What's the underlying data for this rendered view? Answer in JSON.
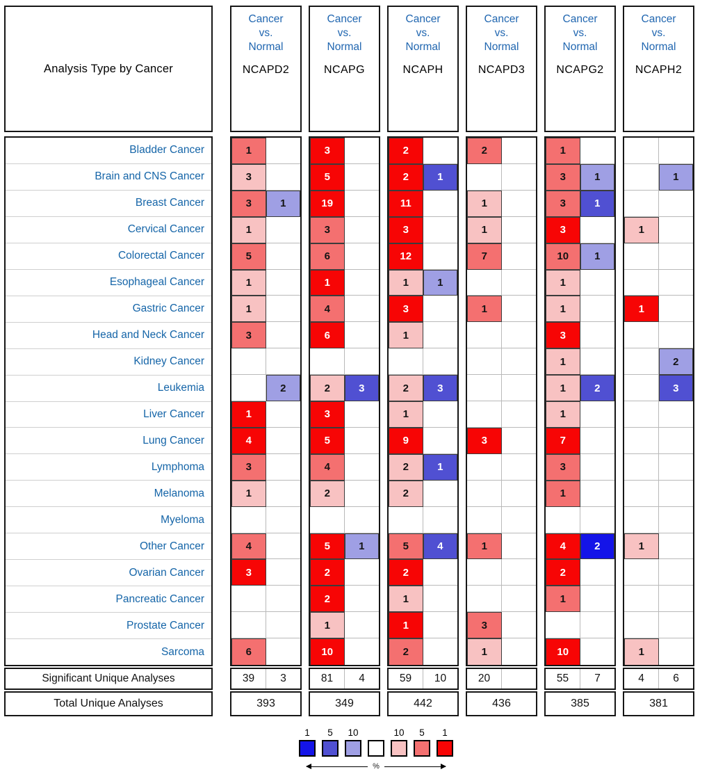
{
  "palette": {
    "r1": "#f70505",
    "r5": "#f47070",
    "r10": "#f8c2c2",
    "b10": "#9f9fe4",
    "b5": "#5050d2",
    "b1": "#1414e8",
    "white": "#ffffff"
  },
  "text_colors": {
    "r1": "#ffffff",
    "r5": "#141414",
    "r10": "#141414",
    "b10": "#141414",
    "b5": "#ffffff",
    "b1": "#ffffff"
  },
  "chart_data": {
    "type": "heatmap",
    "title": "Analysis Type by Cancer",
    "comparison_lines": [
      "Cancer",
      "vs.",
      "Normal"
    ],
    "genes": [
      "NCAPD2",
      "NCAPG",
      "NCAPH",
      "NCAPD3",
      "NCAPG2",
      "NCAPH2"
    ],
    "cancer_types": [
      "Bladder Cancer",
      "Brain and CNS Cancer",
      "Breast Cancer",
      "Cervical Cancer",
      "Colorectal Cancer",
      "Esophageal Cancer",
      "Gastric Cancer",
      "Head and Neck Cancer",
      "Kidney Cancer",
      "Leukemia",
      "Liver Cancer",
      "Lung Cancer",
      "Lymphoma",
      "Melanoma",
      "Myeloma",
      "Other Cancer",
      "Ovarian Cancer",
      "Pancreatic Cancer",
      "Prostate Cancer",
      "Sarcoma"
    ],
    "cells": {
      "NCAPD2": [
        [
          [
            "1",
            "r5"
          ],
          null
        ],
        [
          [
            "3",
            "r10"
          ],
          null
        ],
        [
          [
            "3",
            "r5"
          ],
          [
            "1",
            "b10"
          ]
        ],
        [
          [
            "1",
            "r10"
          ],
          null
        ],
        [
          [
            "5",
            "r5"
          ],
          null
        ],
        [
          [
            "1",
            "r10"
          ],
          null
        ],
        [
          [
            "1",
            "r10"
          ],
          null
        ],
        [
          [
            "3",
            "r5"
          ],
          null
        ],
        [
          null,
          null
        ],
        [
          null,
          [
            "2",
            "b10"
          ]
        ],
        [
          [
            "1",
            "r1"
          ],
          null
        ],
        [
          [
            "4",
            "r1"
          ],
          null
        ],
        [
          [
            "3",
            "r5"
          ],
          null
        ],
        [
          [
            "1",
            "r10"
          ],
          null
        ],
        [
          null,
          null
        ],
        [
          [
            "4",
            "r5"
          ],
          null
        ],
        [
          [
            "3",
            "r1"
          ],
          null
        ],
        [
          null,
          null
        ],
        [
          null,
          null
        ],
        [
          [
            "6",
            "r5"
          ],
          null
        ]
      ],
      "NCAPG": [
        [
          [
            "3",
            "r1"
          ],
          null
        ],
        [
          [
            "5",
            "r1"
          ],
          null
        ],
        [
          [
            "19",
            "r1"
          ],
          null
        ],
        [
          [
            "3",
            "r5"
          ],
          null
        ],
        [
          [
            "6",
            "r5"
          ],
          null
        ],
        [
          [
            "1",
            "r1"
          ],
          null
        ],
        [
          [
            "4",
            "r5"
          ],
          null
        ],
        [
          [
            "6",
            "r1"
          ],
          null
        ],
        [
          null,
          null
        ],
        [
          [
            "2",
            "r10"
          ],
          [
            "3",
            "b5"
          ]
        ],
        [
          [
            "3",
            "r1"
          ],
          null
        ],
        [
          [
            "5",
            "r1"
          ],
          null
        ],
        [
          [
            "4",
            "r5"
          ],
          null
        ],
        [
          [
            "2",
            "r10"
          ],
          null
        ],
        [
          null,
          null
        ],
        [
          [
            "5",
            "r1"
          ],
          [
            "1",
            "b10"
          ]
        ],
        [
          [
            "2",
            "r1"
          ],
          null
        ],
        [
          [
            "2",
            "r1"
          ],
          null
        ],
        [
          [
            "1",
            "r10"
          ],
          null
        ],
        [
          [
            "10",
            "r1"
          ],
          null
        ]
      ],
      "NCAPH": [
        [
          [
            "2",
            "r1"
          ],
          null
        ],
        [
          [
            "2",
            "r1"
          ],
          [
            "1",
            "b5"
          ]
        ],
        [
          [
            "11",
            "r1"
          ],
          null
        ],
        [
          [
            "3",
            "r1"
          ],
          null
        ],
        [
          [
            "12",
            "r1"
          ],
          null
        ],
        [
          [
            "1",
            "r10"
          ],
          [
            "1",
            "b10"
          ]
        ],
        [
          [
            "3",
            "r1"
          ],
          null
        ],
        [
          [
            "1",
            "r10"
          ],
          null
        ],
        [
          null,
          null
        ],
        [
          [
            "2",
            "r10"
          ],
          [
            "3",
            "b5"
          ]
        ],
        [
          [
            "1",
            "r10"
          ],
          null
        ],
        [
          [
            "9",
            "r1"
          ],
          null
        ],
        [
          [
            "2",
            "r10"
          ],
          [
            "1",
            "b5"
          ]
        ],
        [
          [
            "2",
            "r10"
          ],
          null
        ],
        [
          null,
          null
        ],
        [
          [
            "5",
            "r5"
          ],
          [
            "4",
            "b5"
          ]
        ],
        [
          [
            "2",
            "r1"
          ],
          null
        ],
        [
          [
            "1",
            "r10"
          ],
          null
        ],
        [
          [
            "1",
            "r1"
          ],
          null
        ],
        [
          [
            "2",
            "r5"
          ],
          null
        ]
      ],
      "NCAPD3": [
        [
          [
            "2",
            "r5"
          ],
          null
        ],
        [
          null,
          null
        ],
        [
          [
            "1",
            "r10"
          ],
          null
        ],
        [
          [
            "1",
            "r10"
          ],
          null
        ],
        [
          [
            "7",
            "r5"
          ],
          null
        ],
        [
          null,
          null
        ],
        [
          [
            "1",
            "r5"
          ],
          null
        ],
        [
          null,
          null
        ],
        [
          null,
          null
        ],
        [
          null,
          null
        ],
        [
          null,
          null
        ],
        [
          [
            "3",
            "r1"
          ],
          null
        ],
        [
          null,
          null
        ],
        [
          null,
          null
        ],
        [
          null,
          null
        ],
        [
          [
            "1",
            "r5"
          ],
          null
        ],
        [
          null,
          null
        ],
        [
          null,
          null
        ],
        [
          [
            "3",
            "r5"
          ],
          null
        ],
        [
          [
            "1",
            "r10"
          ],
          null
        ]
      ],
      "NCAPG2": [
        [
          [
            "1",
            "r5"
          ],
          null
        ],
        [
          [
            "3",
            "r5"
          ],
          [
            "1",
            "b10"
          ]
        ],
        [
          [
            "3",
            "r5"
          ],
          [
            "1",
            "b5"
          ]
        ],
        [
          [
            "3",
            "r1"
          ],
          null
        ],
        [
          [
            "10",
            "r5"
          ],
          [
            "1",
            "b10"
          ]
        ],
        [
          [
            "1",
            "r10"
          ],
          null
        ],
        [
          [
            "1",
            "r10"
          ],
          null
        ],
        [
          [
            "3",
            "r1"
          ],
          null
        ],
        [
          [
            "1",
            "r10"
          ],
          null
        ],
        [
          [
            "1",
            "r10"
          ],
          [
            "2",
            "b5"
          ]
        ],
        [
          [
            "1",
            "r10"
          ],
          null
        ],
        [
          [
            "7",
            "r1"
          ],
          null
        ],
        [
          [
            "3",
            "r5"
          ],
          null
        ],
        [
          [
            "1",
            "r5"
          ],
          null
        ],
        [
          null,
          null
        ],
        [
          [
            "4",
            "r1"
          ],
          [
            "2",
            "b1"
          ]
        ],
        [
          [
            "2",
            "r1"
          ],
          null
        ],
        [
          [
            "1",
            "r5"
          ],
          null
        ],
        [
          null,
          null
        ],
        [
          [
            "10",
            "r1"
          ],
          null
        ]
      ],
      "NCAPH2": [
        [
          null,
          null
        ],
        [
          null,
          [
            "1",
            "b10"
          ]
        ],
        [
          null,
          null
        ],
        [
          [
            "1",
            "r10"
          ],
          null
        ],
        [
          null,
          null
        ],
        [
          null,
          null
        ],
        [
          [
            "1",
            "r1"
          ],
          null
        ],
        [
          null,
          null
        ],
        [
          null,
          [
            "2",
            "b10"
          ]
        ],
        [
          null,
          [
            "3",
            "b5"
          ]
        ],
        [
          null,
          null
        ],
        [
          null,
          null
        ],
        [
          null,
          null
        ],
        [
          null,
          null
        ],
        [
          null,
          null
        ],
        [
          [
            "1",
            "r10"
          ],
          null
        ],
        [
          null,
          null
        ],
        [
          null,
          null
        ],
        [
          null,
          null
        ],
        [
          [
            "1",
            "r10"
          ],
          null
        ]
      ]
    },
    "significant_label": "Significant Unique Analyses",
    "total_label": "Total Unique Analyses",
    "significant_unique_analyses": {
      "NCAPD2": [
        "39",
        "3"
      ],
      "NCAPG": [
        "81",
        "4"
      ],
      "NCAPH": [
        "59",
        "10"
      ],
      "NCAPD3": [
        "20",
        ""
      ],
      "NCAPG2": [
        "55",
        "7"
      ],
      "NCAPH2": [
        "4",
        "6"
      ]
    },
    "total_unique_analyses": {
      "NCAPD2": "393",
      "NCAPG": "349",
      "NCAPH": "442",
      "NCAPD3": "436",
      "NCAPG2": "385",
      "NCAPH2": "381"
    },
    "legend": {
      "left_ticks": [
        "1",
        "5",
        "10"
      ],
      "right_ticks": [
        "10",
        "5",
        "1"
      ],
      "percent_label": "%",
      "swatch_order": [
        "b1",
        "b5",
        "b10",
        "white",
        "r10",
        "r5",
        "r1"
      ]
    }
  }
}
